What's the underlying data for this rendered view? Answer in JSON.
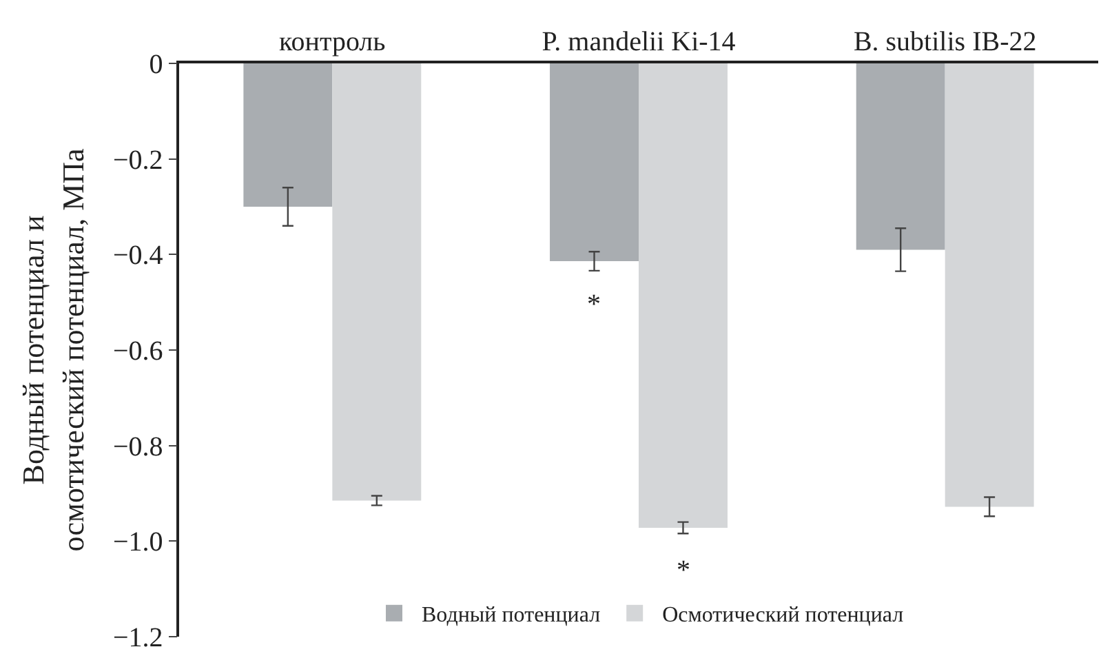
{
  "chart_data": {
    "type": "bar",
    "categories": [
      "контроль",
      "P. mandelii Ki-14",
      "B. subtilis IB-22"
    ],
    "ylabel": "Водный потенциал и\nосмотический потенциал, МПа",
    "series": [
      {
        "name": "Водный потенциал",
        "color": "#a9adb1",
        "values": [
          -0.3,
          -0.414,
          -0.39
        ],
        "errors": [
          0.04,
          0.02,
          0.045
        ]
      },
      {
        "name": "Осмотический потенциал",
        "color": "#d4d6d8",
        "values": [
          -0.915,
          -0.972,
          -0.928
        ],
        "errors": [
          0.01,
          0.012,
          0.02
        ]
      }
    ],
    "ylim": [
      -1.2,
      0
    ],
    "yticks": [
      0,
      {
        "value": -0.2,
        "label": "−0.2"
      },
      {
        "value": -0.4,
        "label": "−0.4"
      },
      {
        "value": -0.6,
        "label": "−0.6"
      },
      {
        "value": -0.8,
        "label": "−0.8"
      },
      {
        "value": -1.0,
        "label": "−1.0"
      },
      {
        "value": -1.2,
        "label": "−1.2"
      }
    ],
    "annotations": [
      {
        "text": "*",
        "x": "P. mandelii Ki-14",
        "y": -0.414
      },
      {
        "text": "*",
        "x": "P. mandelii Ki-14",
        "y": -0.972
      }
    ],
    "legend": "bottom"
  }
}
